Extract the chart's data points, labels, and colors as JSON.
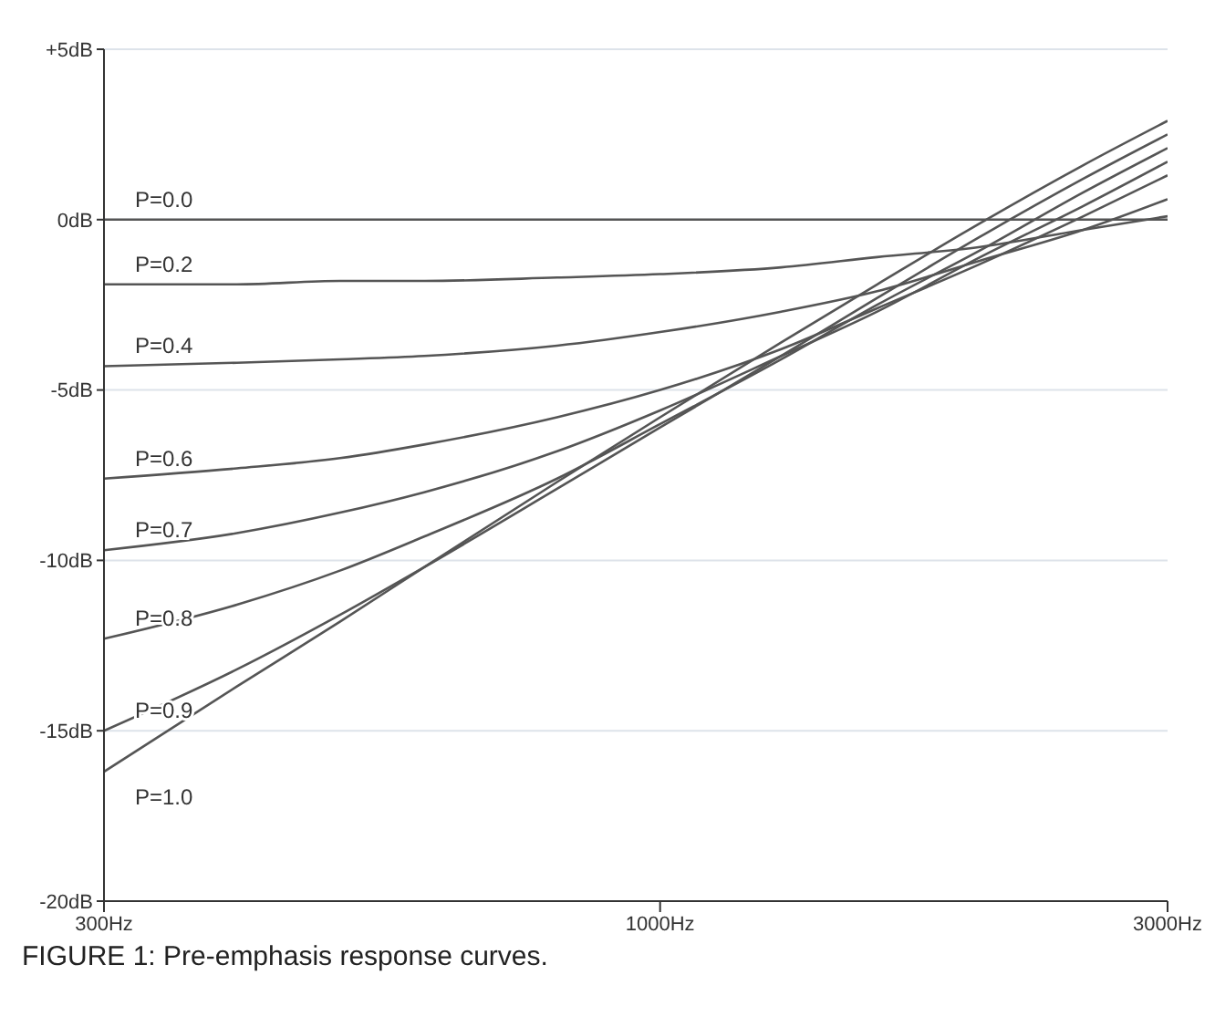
{
  "chart_data": {
    "type": "line",
    "title": "FIGURE 1: Pre-emphasis response curves.",
    "x": [
      300,
      400,
      500,
      600,
      800,
      1000,
      1300,
      1600,
      2000,
      2500,
      3000
    ],
    "series": [
      {
        "name": "P=0.0",
        "color": "#555555",
        "values": [
          0,
          0,
          0,
          0,
          0,
          0,
          0,
          0,
          0,
          0,
          0
        ]
      },
      {
        "name": "P=0.2",
        "color": "#555555",
        "values": [
          -1.9,
          -1.9,
          -1.8,
          -1.8,
          -1.7,
          -1.6,
          -1.4,
          -1.1,
          -0.8,
          -0.3,
          0.1
        ]
      },
      {
        "name": "P=0.4",
        "color": "#555555",
        "values": [
          -4.3,
          -4.2,
          -4.1,
          -4.0,
          -3.7,
          -3.3,
          -2.7,
          -2.1,
          -1.2,
          -0.3,
          0.6
        ]
      },
      {
        "name": "P=0.6",
        "color": "#555555",
        "values": [
          -7.6,
          -7.3,
          -7.0,
          -6.6,
          -5.8,
          -5.0,
          -3.8,
          -2.6,
          -1.3,
          0.1,
          1.3
        ]
      },
      {
        "name": "P=0.7",
        "color": "#555555",
        "values": [
          -9.7,
          -9.2,
          -8.6,
          -8.0,
          -6.8,
          -5.6,
          -4.0,
          -2.7,
          -1.1,
          0.4,
          1.7
        ]
      },
      {
        "name": "P=0.8",
        "color": "#555555",
        "values": [
          -12.3,
          -11.3,
          -10.3,
          -9.3,
          -7.6,
          -6.0,
          -4.1,
          -2.5,
          -0.9,
          0.8,
          2.1
        ]
      },
      {
        "name": "P=0.9",
        "color": "#555555",
        "values": [
          -15.0,
          -13.2,
          -11.6,
          -10.2,
          -7.9,
          -6.1,
          -4.0,
          -2.3,
          -0.5,
          1.2,
          2.5
        ]
      },
      {
        "name": "P=1.0",
        "color": "#555555",
        "values": [
          -16.2,
          -13.7,
          -11.8,
          -10.2,
          -7.7,
          -5.8,
          -3.6,
          -1.9,
          -0.1,
          1.6,
          2.9
        ]
      }
    ],
    "xlim": [
      300,
      3000
    ],
    "xticks": [
      {
        "value": 300,
        "label": "300Hz"
      },
      {
        "value": 1000,
        "label": "1000Hz"
      },
      {
        "value": 3000,
        "label": "3000Hz"
      }
    ],
    "ylim": [
      -20,
      5
    ],
    "yticks": [
      {
        "value": -20,
        "label": "-20dB"
      },
      {
        "value": -15,
        "label": "-15dB"
      },
      {
        "value": -10,
        "label": "-10dB"
      },
      {
        "value": -5,
        "label": "-5dB"
      },
      {
        "value": 0,
        "label": "0dB"
      },
      {
        "value": 5,
        "label": "+5dB"
      }
    ],
    "log": "x",
    "grid": "y",
    "marker": "none",
    "line_style": "solid"
  }
}
